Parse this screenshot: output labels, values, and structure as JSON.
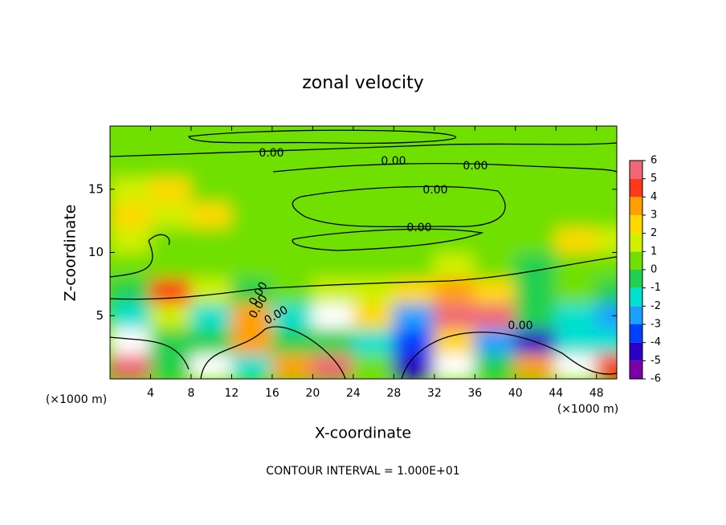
{
  "chart_data": {
    "type": "contour",
    "title": "zonal velocity",
    "x_label": "X-coordinate",
    "y_label": "Z-coordinate",
    "x_unit_label": "(×1000 m)",
    "y_unit_label": "(×1000 m)",
    "footer": "CONTOUR INTERVAL = 1.000E+01",
    "contour_labels": [
      "0.00",
      "0.00",
      "0.00",
      "0.00",
      "0.00",
      "0.00",
      "0.00",
      "0.00",
      "0.00"
    ],
    "xlim": [
      0,
      50
    ],
    "xticks": [
      4,
      8,
      12,
      16,
      20,
      24,
      28,
      32,
      36,
      40,
      44,
      48
    ],
    "ylim": [
      0,
      20
    ],
    "yticks": [
      5,
      10,
      15
    ],
    "x": [
      2,
      6,
      10,
      14,
      18,
      22,
      26,
      30,
      34,
      38,
      42,
      46,
      50
    ],
    "y": [
      1,
      3,
      5,
      7,
      9,
      11,
      13,
      15,
      17,
      19
    ],
    "z": [
      [
        5,
        -1,
        -7,
        -2,
        3,
        5,
        0,
        -5,
        -7,
        -1,
        3,
        -7,
        4
      ],
      [
        -7,
        -1,
        -1,
        3,
        -1,
        -1,
        -2,
        -4,
        2,
        -3,
        -5,
        -2,
        -2
      ],
      [
        -2,
        1,
        -2,
        3,
        -2,
        -7,
        2,
        -3,
        6,
        5,
        -1,
        -2,
        -3
      ],
      [
        -1,
        4,
        1,
        -1,
        0.5,
        1,
        1,
        2,
        3,
        2,
        -0.5,
        0,
        -1
      ],
      [
        0,
        0.5,
        0.5,
        0.5,
        0.5,
        0.5,
        0.5,
        0.5,
        1,
        0.5,
        -0.5,
        0.5,
        0
      ],
      [
        1,
        0.5,
        0.5,
        0.5,
        0.5,
        0.5,
        0.5,
        0.3,
        0.5,
        0.5,
        0.5,
        2,
        1
      ],
      [
        2,
        1,
        2,
        0.5,
        0.3,
        0.2,
        0.1,
        0,
        0,
        0.3,
        0.5,
        0.5,
        0.5
      ],
      [
        1,
        2,
        0.5,
        0.5,
        0.5,
        0.3,
        0.2,
        0.2,
        0.2,
        0.2,
        0.3,
        0.5,
        0.5
      ],
      [
        0.3,
        0.3,
        0.3,
        0.3,
        0.3,
        0.3,
        0.3,
        0.3,
        0.3,
        0.3,
        0.3,
        0.3,
        0.3
      ],
      [
        0.5,
        0.5,
        0.5,
        0.5,
        0.5,
        0.5,
        0.5,
        0.5,
        0.5,
        0.5,
        0.5,
        0.5,
        0.5
      ]
    ],
    "colorbar_lim": [
      -6,
      6
    ],
    "colorbar_ticks": [
      -6,
      -5,
      -4,
      -3,
      -2,
      -1,
      0,
      1,
      2,
      3,
      4,
      5,
      6
    ],
    "colors": [
      "#7a00a8",
      "#2a00c8",
      "#0040ff",
      "#1ca0ff",
      "#00e0d0",
      "#20d050",
      "#70e000",
      "#d0f000",
      "#ffd800",
      "#ffa000",
      "#ff3818",
      "#f06878"
    ],
    "over_color": "#f8c8c8",
    "out_of_range_color": "#ffffff"
  }
}
